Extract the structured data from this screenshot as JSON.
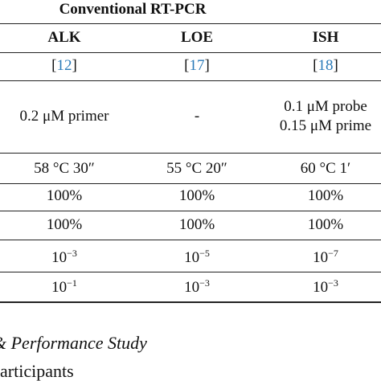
{
  "table": {
    "group_title": "Conventional RT-PCR",
    "columns": [
      "ALK",
      "LOE",
      "ISH"
    ],
    "refs": [
      {
        "open": "[",
        "num": "12",
        "close": "]"
      },
      {
        "open": "[",
        "num": "17",
        "close": "]"
      },
      {
        "open": "[",
        "num": "18",
        "close": "]"
      }
    ],
    "rows": [
      [
        [
          "0.2 μM primer"
        ],
        [
          "-"
        ],
        [
          "0.1 μM probe",
          "0.15 μM prime"
        ]
      ],
      [
        [
          "58 °C 30″"
        ],
        [
          "55 °C 20″"
        ],
        [
          "60 °C 1′"
        ]
      ],
      [
        [
          "100%"
        ],
        [
          "100%"
        ],
        [
          "100%"
        ]
      ],
      [
        [
          "100%"
        ],
        [
          "100%"
        ],
        [
          "100%"
        ]
      ],
      [
        {
          "base": "10",
          "exp": "−3"
        },
        {
          "base": "10",
          "exp": "−5"
        },
        {
          "base": "10",
          "exp": "−7"
        }
      ],
      [
        {
          "base": "10",
          "exp": "−1"
        },
        {
          "base": "10",
          "exp": "−3"
        },
        {
          "base": "10",
          "exp": "−3"
        }
      ]
    ]
  },
  "footer": {
    "line1": "& Performance Study",
    "line2": "articipants"
  }
}
